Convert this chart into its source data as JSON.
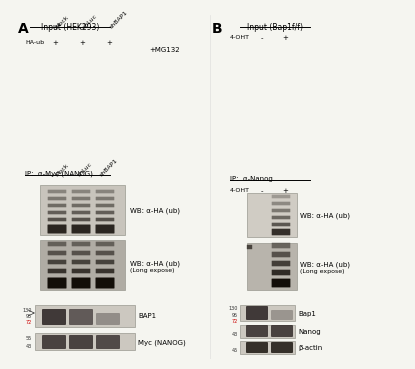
{
  "fig_width": 3.96,
  "fig_height": 3.44,
  "background_color": "#f5f5f0",
  "panel_A": {
    "label": "A",
    "input_title": "Input (HEK293)",
    "mg132_label": "+MG132",
    "ha_ub_label": "HA-ub",
    "ha_ub_plus": [
      "+",
      "+",
      "+"
    ],
    "col_labels": [
      "Mock",
      "shLuc",
      "shBAP1"
    ],
    "blot1_label": "BAP1",
    "blot2_label": "Myc (NANOG)",
    "mw_markers_blot1": [
      "130",
      "95",
      "72"
    ],
    "mw_markers_blot2": [
      "55",
      "43"
    ],
    "ip_label": "IP:  α-Myc (NANOG)",
    "ip_col_labels": [
      "Mock",
      "shLuc",
      "shBAP1"
    ],
    "wb1_label": "WB: α-HA (ub)",
    "wb2_label": "WB: α-HA (ub)",
    "wb2_sublabel": "(Long expose)"
  },
  "panel_B": {
    "label": "B",
    "input_title": "Input (Bap1f/f)",
    "condition_label": "4-OHT",
    "conditions": [
      "-",
      "+"
    ],
    "blot1_label": "Bap1",
    "blot2_label": "Nanog",
    "blot3_label": "β-actin",
    "mw_markers_blot1": [
      "130",
      "95",
      "72"
    ],
    "mw_markers_blot2": [
      "43"
    ],
    "mw_markers_blot3": [
      "45"
    ],
    "ip_label": "IP:  α-Nanog",
    "ip_condition_label": "4-OHT",
    "ip_conditions": [
      "-",
      "+"
    ],
    "wb1_label": "WB: α-HA (ub)",
    "wb2_label": "WB: α-HA (ub)",
    "wb2_sublabel": "(Long expose)"
  },
  "colors": {
    "black": "#000000",
    "dark_gray": "#333333",
    "medium_gray": "#888888",
    "light_gray": "#cccccc",
    "red": "#cc0000",
    "white": "#ffffff",
    "blot_bg": "#d8d4cc",
    "blot_dark": "#2a2520",
    "blot_band": "#3a3530"
  }
}
